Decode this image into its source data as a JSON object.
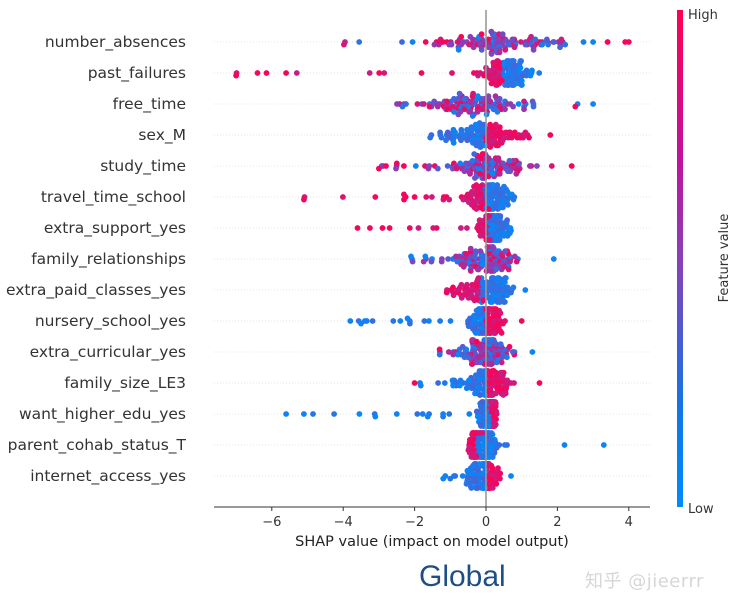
{
  "caption": "Global",
  "watermark": "知乎 @jieerrr",
  "chart_data": {
    "type": "scatter",
    "subtype": "shap-beeswarm-summary",
    "title": "",
    "xlabel": "SHAP value (impact on model output)",
    "ylabel": "",
    "xlim": [
      -7.6,
      4.6
    ],
    "xticks": [
      -6,
      -4,
      -2,
      0,
      2,
      4
    ],
    "xtick_labels": [
      "−6",
      "−4",
      "−2",
      "0",
      "2",
      "4"
    ],
    "grid": false,
    "colorbar": {
      "label": "Feature value",
      "high_label": "High",
      "low_label": "Low",
      "low_color": "#008bfb",
      "mid_color": "#8a3fb8",
      "high_color": "#ff0052",
      "placement": "right"
    },
    "features": [
      {
        "name": "number_absences",
        "min": -4.1,
        "max": 4.0,
        "peak": 0.5,
        "spread": 1.1,
        "high_side": "mixed",
        "outliers_high": [
          3.9,
          4.0
        ],
        "outliers_low": [
          3.0
        ]
      },
      {
        "name": "past_failures",
        "min": -7.0,
        "max": 1.6,
        "peak": 0.6,
        "spread": 0.35,
        "high_side": "negative",
        "outliers_high": [
          -7.0,
          -6.4,
          -5.6
        ],
        "outliers_low": []
      },
      {
        "name": "free_time",
        "min": -2.5,
        "max": 3.0,
        "peak": -0.1,
        "spread": 0.7,
        "high_side": "mixed",
        "outliers_high": [
          2.5
        ],
        "outliers_low": [
          3.0
        ]
      },
      {
        "name": "sex_M",
        "min": -1.6,
        "max": 1.8,
        "peak": 0.0,
        "spread": 0.5,
        "high_side": "positive",
        "outliers_high": [
          1.8
        ],
        "outliers_low": []
      },
      {
        "name": "study_time",
        "min": -3.0,
        "max": 2.4,
        "peak": 0.0,
        "spread": 0.6,
        "high_side": "mixed",
        "outliers_high": [
          -3.0,
          -2.8,
          -2.5,
          -2.3,
          2.4
        ],
        "outliers_low": []
      },
      {
        "name": "travel_time_school",
        "min": -5.1,
        "max": 0.9,
        "peak": 0.1,
        "spread": 0.35,
        "high_side": "negative",
        "outliers_high": [
          -5.1,
          -3.1,
          -2.3,
          -2.0
        ],
        "outliers_low": []
      },
      {
        "name": "extra_support_yes",
        "min": -3.6,
        "max": 0.7,
        "peak": 0.2,
        "spread": 0.2,
        "high_side": "negative",
        "outliers_high": [
          -3.6,
          -2.9,
          -2.7
        ],
        "outliers_low": [
          0.7
        ]
      },
      {
        "name": "family_relationships",
        "min": -2.1,
        "max": 1.9,
        "peak": 0.0,
        "spread": 0.5,
        "high_side": "mixed",
        "outliers_high": [],
        "outliers_low": [
          -2.1,
          -1.7,
          1.9
        ]
      },
      {
        "name": "extra_paid_classes_yes",
        "min": -1.1,
        "max": 1.1,
        "peak": 0.0,
        "spread": 0.4,
        "high_side": "negative",
        "outliers_high": [
          -1.1
        ],
        "outliers_low": [
          1.1
        ]
      },
      {
        "name": "nursery_school_yes",
        "min": -3.8,
        "max": 1.2,
        "peak": 0.0,
        "spread": 0.25,
        "high_side": "positive",
        "outliers_high": [
          1.0
        ],
        "outliers_low": [
          -3.8,
          -3.5,
          -2.4,
          -2.2,
          -1.6
        ]
      },
      {
        "name": "extra_curricular_yes",
        "min": -1.3,
        "max": 1.3,
        "peak": 0.0,
        "spread": 0.35,
        "high_side": "mixed",
        "outliers_high": [
          -1.3
        ],
        "outliers_low": [
          1.3
        ]
      },
      {
        "name": "family_size_LE3",
        "min": -2.0,
        "max": 1.6,
        "peak": 0.0,
        "spread": 0.35,
        "high_side": "positive",
        "outliers_high": [
          -2.0,
          1.5
        ],
        "outliers_low": []
      },
      {
        "name": "want_higher_edu_yes",
        "min": -5.6,
        "max": 0.3,
        "peak": 0.1,
        "spread": 0.15,
        "high_side": "positive",
        "outliers_high": [],
        "outliers_low": [
          -5.6,
          -5.1,
          -3.1,
          -2.5
        ]
      },
      {
        "name": "parent_cohab_status_T",
        "min": -0.5,
        "max": 3.3,
        "peak": -0.1,
        "spread": 0.25,
        "high_side": "negative",
        "outliers_high": [],
        "outliers_low": [
          2.2,
          3.3
        ]
      },
      {
        "name": "internet_access_yes",
        "min": -1.2,
        "max": 0.7,
        "peak": 0.0,
        "spread": 0.2,
        "high_side": "positive",
        "outliers_high": [],
        "outliers_low": [
          -1.2,
          0.7
        ]
      }
    ]
  }
}
